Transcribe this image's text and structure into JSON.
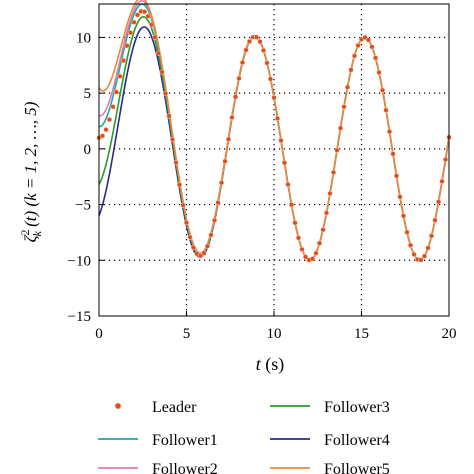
{
  "chart_data": {
    "type": "line",
    "xlabel": {
      "var": "t",
      "unit": " (s)"
    },
    "ylabel": {
      "symbol": "ζ",
      "sup": "2",
      "sub": "k",
      "arg": " (t) (k = 1, 2, …, 5)"
    },
    "xlim": [
      0,
      20
    ],
    "ylim": [
      -15,
      13
    ],
    "x_ticks": [
      0,
      5,
      10,
      15,
      20
    ],
    "y_ticks": [
      -15,
      -10,
      -5,
      0,
      5,
      10
    ],
    "grid": true,
    "legend_position": "bottom",
    "series": [
      {
        "name": "Leader",
        "color": "#d94f1e",
        "style": "markers",
        "initial": 1.0,
        "decay": 0.55
      },
      {
        "name": "Follower1",
        "color": "#1fa8a0",
        "style": "line",
        "initial": 2.0,
        "decay": 0.5
      },
      {
        "name": "Follower2",
        "color": "#d87fb0",
        "style": "line",
        "initial": 3.0,
        "decay": 0.5
      },
      {
        "name": "Follower3",
        "color": "#2a9a2a",
        "style": "line",
        "initial": -3.2,
        "decay": 0.42
      },
      {
        "name": "Follower4",
        "color": "#2a2a8a",
        "style": "line",
        "initial": -6.0,
        "decay": 0.4
      },
      {
        "name": "Follower5",
        "color": "#e88a3a",
        "style": "line",
        "initial": 5.5,
        "decay": 0.55
      }
    ]
  }
}
